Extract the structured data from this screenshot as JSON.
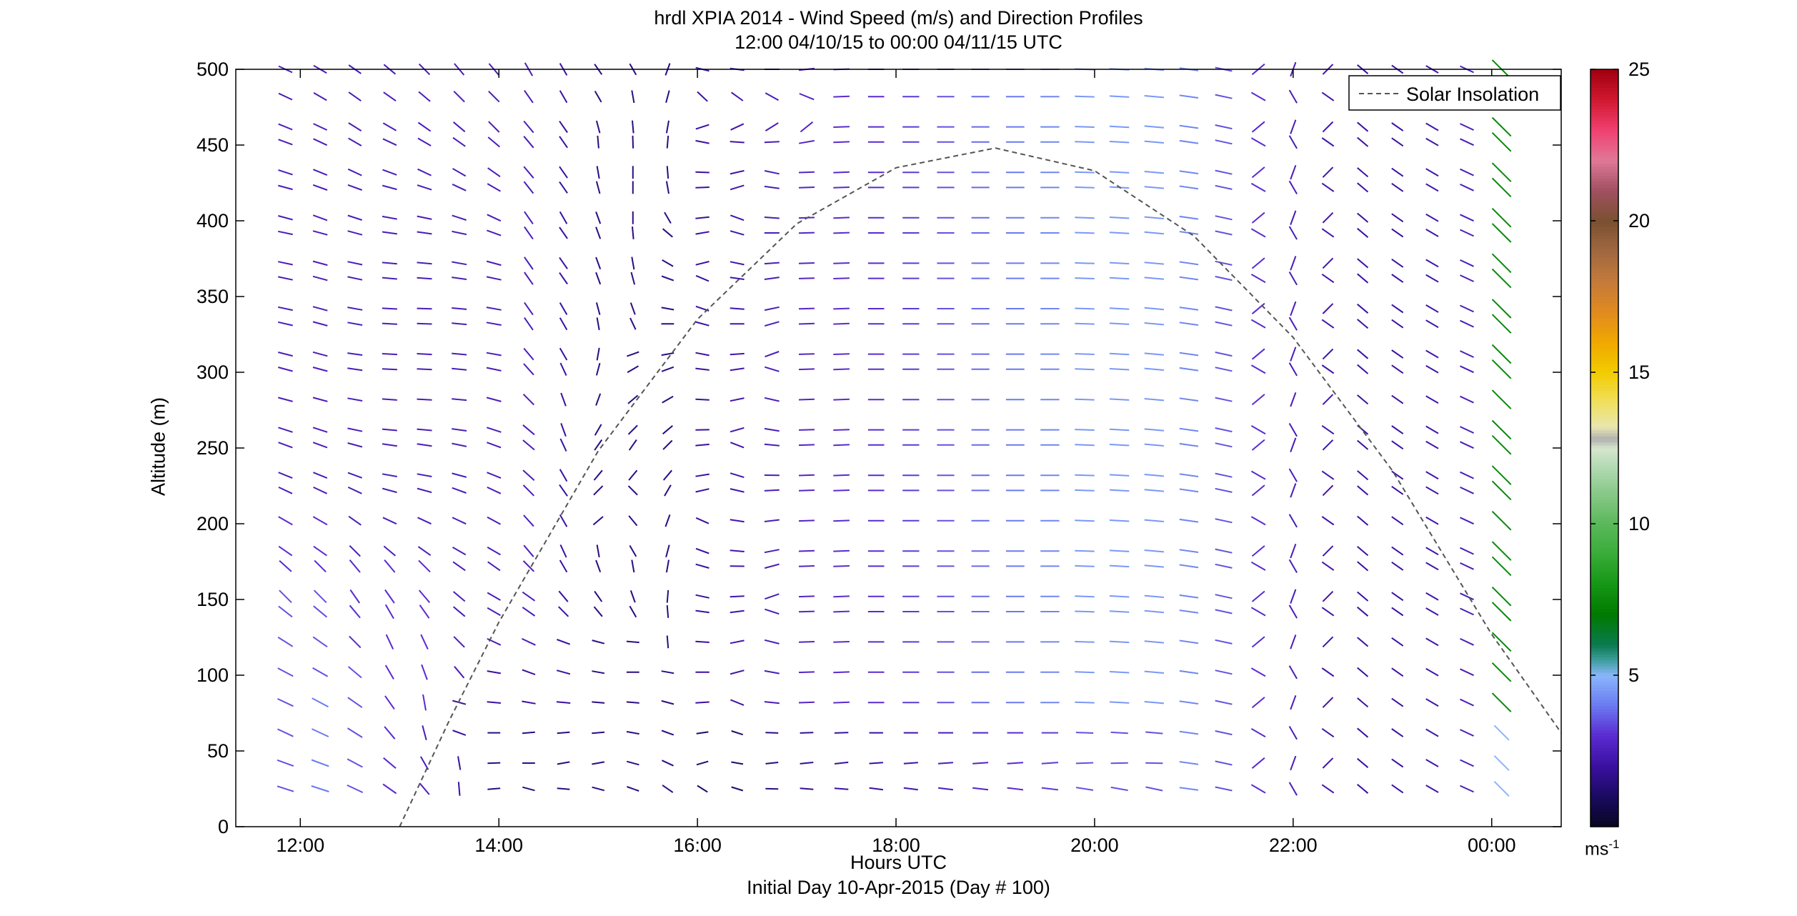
{
  "colors": {
    "axis": "#000000",
    "solar": "#555555",
    "background": "#ffffff"
  },
  "chart_data": {
    "type": "quiver",
    "title": "hrdl XPIA 2014 - Wind Speed (m/s) and Direction Profiles",
    "subtitle": "12:00 04/10/15 to 00:00 04/11/15  UTC",
    "xlabel": "Hours UTC",
    "xsublabel": "Initial Day 10-Apr-2015 (Day # 100)",
    "ylabel": "Altitude (m)",
    "xlim": [
      11.35,
      24.7
    ],
    "ylim": [
      0,
      500
    ],
    "x_ticks": [
      {
        "value": 12,
        "label": "12:00"
      },
      {
        "value": 14,
        "label": "14:00"
      },
      {
        "value": 16,
        "label": "16:00"
      },
      {
        "value": 18,
        "label": "18:00"
      },
      {
        "value": 20,
        "label": "20:00"
      },
      {
        "value": 22,
        "label": "22:00"
      },
      {
        "value": 24,
        "label": "00:00"
      }
    ],
    "y_ticks": [
      0,
      50,
      100,
      150,
      200,
      250,
      300,
      350,
      400,
      450,
      500
    ],
    "legend": {
      "label": "Solar Insolation",
      "position": "top-right",
      "style": "dashed"
    },
    "colorbar": {
      "range": [
        0,
        25
      ],
      "ticks": [
        5,
        10,
        15,
        20,
        25
      ],
      "unit": "ms",
      "unit_exponent": "-1",
      "colormap": [
        [
          0,
          "#070720"
        ],
        [
          1,
          "#1a0a60"
        ],
        [
          2,
          "#3a10a0"
        ],
        [
          3,
          "#5a2ad0"
        ],
        [
          4,
          "#6a7af0"
        ],
        [
          5,
          "#8ab6fa"
        ],
        [
          5.5,
          "#3e9e9e"
        ],
        [
          6,
          "#0b7a50"
        ],
        [
          7,
          "#007a00"
        ],
        [
          8,
          "#159615"
        ],
        [
          9,
          "#38ac38"
        ],
        [
          10,
          "#5ab85a"
        ],
        [
          11,
          "#88c888"
        ],
        [
          12,
          "#b8dcb8"
        ],
        [
          12.5,
          "#d6e6cc"
        ],
        [
          12.8,
          "#b0b0b0"
        ],
        [
          13.2,
          "#e8e6b0"
        ],
        [
          14,
          "#f0e060"
        ],
        [
          15,
          "#f2cc00"
        ],
        [
          16,
          "#f0a800"
        ],
        [
          17,
          "#e08a20"
        ],
        [
          18,
          "#c47a3a"
        ],
        [
          19,
          "#a06840"
        ],
        [
          20,
          "#7a5030"
        ],
        [
          21,
          "#a05060"
        ],
        [
          22,
          "#e07898"
        ],
        [
          23,
          "#f04070"
        ],
        [
          24,
          "#d01830"
        ],
        [
          25,
          "#a00010"
        ]
      ]
    },
    "solar_curve": {
      "description_points": [
        {
          "x": 13.0,
          "y": 0
        },
        {
          "x": 13.5,
          "y": 70
        },
        {
          "x": 14.0,
          "y": 135
        },
        {
          "x": 15.0,
          "y": 248
        },
        {
          "x": 16.0,
          "y": 335
        },
        {
          "x": 17.0,
          "y": 398
        },
        {
          "x": 18.0,
          "y": 435
        },
        {
          "x": 19.0,
          "y": 448
        },
        {
          "x": 20.0,
          "y": 433
        },
        {
          "x": 21.0,
          "y": 390
        },
        {
          "x": 22.0,
          "y": 323
        },
        {
          "x": 23.0,
          "y": 235
        },
        {
          "x": 24.0,
          "y": 127
        },
        {
          "x": 24.7,
          "y": 62
        }
      ]
    },
    "altitudes": [
      25,
      42,
      62,
      82,
      102,
      122,
      142,
      152,
      172,
      182,
      202,
      222,
      232,
      252,
      262,
      282,
      302,
      312,
      332,
      342,
      362,
      372,
      392,
      402,
      422,
      432,
      452,
      462,
      482,
      500
    ],
    "columns": [
      {
        "t": 11.85,
        "dir": [
          -18,
          -20,
          -25,
          -25,
          -28,
          -32,
          -38,
          -45,
          -42,
          -35,
          -30,
          -25,
          -22,
          -20,
          -18,
          -15,
          -15,
          -14,
          -13,
          -12,
          -12,
          -12,
          -12,
          -15,
          -15,
          -18,
          -20,
          -22,
          -25,
          -25
        ],
        "spd": [
          3.5,
          3.5,
          3.5,
          3.5,
          3.5,
          3.5,
          3.5,
          3.5,
          3,
          3,
          3,
          2.5,
          2.5,
          2.5,
          2.5,
          2.5,
          2.5,
          2.5,
          2.5,
          2.5,
          2.5,
          2.5,
          2.5,
          2.5,
          2.5,
          2.5,
          2.5,
          2.5,
          2.5,
          2.5
        ]
      },
      {
        "t": 12.2,
        "dir": [
          -18,
          -20,
          -25,
          -28,
          -30,
          -35,
          -40,
          -45,
          -45,
          -35,
          -30,
          -25,
          -22,
          -20,
          -18,
          -15,
          -15,
          -15,
          -15,
          -15,
          -15,
          -15,
          -15,
          -20,
          -20,
          -22,
          -25,
          -25,
          -30,
          -30
        ],
        "spd": [
          4,
          4,
          4,
          4,
          3.5,
          3.5,
          3.5,
          3.5,
          3,
          3,
          3,
          2.5,
          2.5,
          2.5,
          2.5,
          2.5,
          2.5,
          2.5,
          2.5,
          2.5,
          2.5,
          2.5,
          2.5,
          2.5,
          2.5,
          2.5,
          2.5,
          2.5,
          2.5,
          2.5
        ]
      },
      {
        "t": 12.55,
        "dir": [
          -25,
          -28,
          -32,
          -35,
          -40,
          -45,
          -50,
          -55,
          -50,
          -45,
          -35,
          -25,
          -20,
          -15,
          -12,
          -10,
          -8,
          -8,
          -10,
          -10,
          -12,
          -12,
          -15,
          -18,
          -20,
          -25,
          -30,
          -32,
          -35,
          -35
        ],
        "spd": [
          3.5,
          3.5,
          3.5,
          3.5,
          3.5,
          3,
          3,
          3,
          3,
          2.5,
          2.5,
          2.5,
          2.5,
          2.5,
          2.5,
          2.5,
          2.5,
          2.5,
          2.5,
          2.5,
          2.5,
          2.5,
          2.5,
          2.5,
          2.5,
          2.5,
          2.5,
          2.5,
          2.5,
          2.5
        ]
      },
      {
        "t": 12.9,
        "dir": [
          -35,
          -40,
          -50,
          -55,
          -60,
          -65,
          -60,
          -55,
          -50,
          -40,
          -25,
          -15,
          -10,
          -8,
          -5,
          -4,
          -3,
          -3,
          -3,
          -3,
          -5,
          -5,
          -8,
          -10,
          -15,
          -20,
          -25,
          -30,
          -35,
          -40
        ],
        "spd": [
          3,
          3,
          3,
          3,
          3,
          3,
          3,
          3,
          3,
          2.5,
          2.5,
          2.5,
          2.5,
          2.5,
          2.5,
          2.5,
          2.5,
          2.5,
          2.5,
          2.5,
          2.5,
          2.5,
          2.5,
          2.5,
          2.5,
          2.5,
          2.5,
          2.5,
          2.5,
          2.5
        ]
      },
      {
        "t": 13.25,
        "dir": [
          -50,
          -60,
          -75,
          -80,
          -70,
          -65,
          -55,
          -50,
          -45,
          -35,
          -25,
          -15,
          -10,
          -8,
          -5,
          -3,
          -3,
          -3,
          -2,
          -2,
          -4,
          -5,
          -8,
          -12,
          -18,
          -25,
          -30,
          -35,
          -40,
          -45
        ],
        "spd": [
          2.5,
          2.5,
          2.5,
          3,
          3,
          3,
          3,
          3,
          3,
          2.5,
          2.5,
          2.5,
          2.5,
          2.5,
          2.5,
          2.5,
          2.5,
          2.5,
          2.5,
          2.5,
          2.5,
          2.5,
          2.5,
          2.5,
          2.5,
          2.5,
          2.5,
          2.5,
          2.5,
          2.5
        ]
      },
      {
        "t": 13.6,
        "dir": [
          -85,
          -80,
          -20,
          -15,
          -50,
          -45,
          -40,
          -40,
          -35,
          -30,
          -25,
          -20,
          -15,
          -12,
          -8,
          -5,
          -5,
          -5,
          -5,
          -5,
          -8,
          -10,
          -12,
          -18,
          -25,
          -30,
          -35,
          -40,
          -45,
          -50
        ],
        "spd": [
          2,
          2,
          2,
          2,
          2.5,
          2.5,
          2.5,
          2.5,
          2.5,
          2.5,
          2.5,
          2.5,
          2.5,
          2.5,
          2.5,
          2.5,
          2.5,
          2.5,
          2.5,
          2.5,
          2.5,
          2.5,
          2.5,
          2.5,
          2.5,
          2.5,
          2.5,
          2.5,
          2.5,
          2.5
        ]
      },
      {
        "t": 13.95,
        "dir": [
          5,
          2,
          0,
          -5,
          -10,
          -25,
          -30,
          -30,
          -35,
          -30,
          -28,
          -25,
          -22,
          -20,
          -18,
          -15,
          -12,
          -10,
          -10,
          -10,
          -12,
          -15,
          -20,
          -25,
          -30,
          -35,
          -40,
          -45,
          -45,
          -50
        ],
        "spd": [
          1.5,
          1.5,
          1.5,
          2,
          2,
          2.5,
          2.5,
          2.5,
          2.5,
          2.5,
          2.5,
          2.5,
          2.5,
          2.5,
          2.5,
          2.5,
          2.5,
          2.5,
          2.5,
          2.5,
          2.5,
          2.5,
          2.5,
          2.5,
          2.5,
          2.5,
          2.5,
          2.5,
          2.5,
          2.5
        ]
      },
      {
        "t": 14.3,
        "dir": [
          -15,
          0,
          5,
          -10,
          -20,
          -25,
          -35,
          -35,
          -45,
          -50,
          -48,
          -45,
          -42,
          -40,
          -40,
          -45,
          -48,
          -50,
          -55,
          -55,
          -55,
          -55,
          -55,
          -55,
          -52,
          -50,
          -50,
          -50,
          -55,
          -60
        ],
        "spd": [
          1.5,
          1.5,
          1.5,
          2,
          2,
          2.5,
          2.5,
          2.5,
          2.5,
          2.5,
          2.5,
          2.5,
          2.5,
          2.5,
          2.5,
          2.5,
          2.5,
          2.5,
          2.5,
          2.5,
          2.5,
          2.5,
          2.5,
          2.5,
          2.5,
          2.5,
          2.5,
          2.5,
          2.5,
          2.5
        ]
      },
      {
        "t": 14.65,
        "dir": [
          -5,
          10,
          5,
          -5,
          -15,
          -20,
          -45,
          -50,
          -60,
          -65,
          -60,
          -55,
          -60,
          -65,
          -70,
          -70,
          -65,
          -60,
          -60,
          -60,
          -55,
          -55,
          -55,
          -60,
          -55,
          -55,
          -55,
          -55,
          -60,
          -60
        ],
        "spd": [
          1.5,
          1.5,
          1.5,
          2,
          2,
          2,
          2,
          2,
          2,
          2,
          2,
          2,
          2,
          2,
          2,
          2,
          2,
          2,
          2,
          2,
          2,
          2,
          2,
          2,
          2,
          2,
          2,
          2,
          2,
          2
        ]
      },
      {
        "t": 15.0,
        "dir": [
          -15,
          10,
          5,
          -5,
          -10,
          -15,
          -50,
          -55,
          -70,
          -80,
          40,
          45,
          50,
          55,
          60,
          70,
          75,
          80,
          -80,
          -75,
          -70,
          -70,
          -70,
          -70,
          -75,
          -80,
          -85,
          -75,
          -60,
          -55
        ],
        "spd": [
          1.5,
          1.5,
          1.5,
          1.5,
          1.5,
          1.5,
          1.5,
          1.5,
          1.5,
          1.5,
          1.5,
          1.5,
          1.5,
          1.5,
          1.5,
          1.5,
          1.5,
          1.5,
          1.5,
          1.5,
          1.5,
          1.5,
          1.5,
          1.5,
          1.5,
          1.5,
          1.5,
          1.5,
          1.5,
          1.5
        ]
      },
      {
        "t": 15.35,
        "dir": [
          -20,
          -15,
          -10,
          -5,
          0,
          -5,
          -60,
          -70,
          -80,
          -60,
          -50,
          -45,
          50,
          55,
          45,
          40,
          30,
          20,
          -65,
          -70,
          -75,
          -80,
          -85,
          -90,
          -90,
          -90,
          -88,
          -85,
          -80,
          -60
        ],
        "spd": [
          1.5,
          1.5,
          1.5,
          1.5,
          1.5,
          1.5,
          1.5,
          1.5,
          1.5,
          1.5,
          1.5,
          1.5,
          1.5,
          1.5,
          1.5,
          1.5,
          1.5,
          1.5,
          1.5,
          1.5,
          1.5,
          1.5,
          1.5,
          1.5,
          1.5,
          1.5,
          1.5,
          1.5,
          1.5,
          1.5
        ]
      },
      {
        "t": 15.7,
        "dir": [
          -35,
          -25,
          -20,
          -15,
          -10,
          -85,
          -85,
          85,
          80,
          75,
          70,
          60,
          50,
          45,
          40,
          30,
          20,
          10,
          0,
          -10,
          -20,
          -30,
          -40,
          -60,
          -80,
          -85,
          85,
          80,
          75,
          70
        ],
        "spd": [
          1.5,
          1.5,
          1.5,
          1.5,
          1.5,
          1.5,
          1.5,
          1.5,
          1.5,
          1.5,
          1.5,
          1.5,
          1.5,
          1.5,
          1.5,
          1.5,
          1.5,
          1.5,
          1.5,
          1.5,
          1.5,
          1.5,
          1.5,
          1.5,
          1.5,
          1.5,
          1.5,
          1.5,
          1.5,
          1.5
        ]
      }
    ]
  }
}
